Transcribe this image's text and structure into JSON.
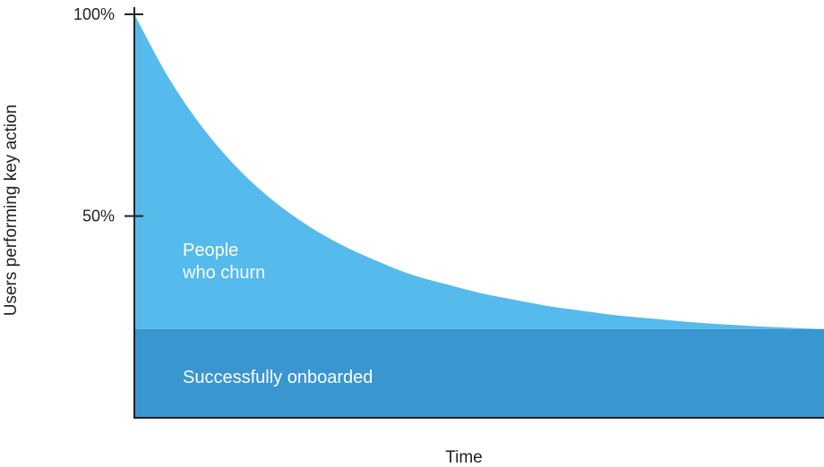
{
  "chart_data": {
    "type": "area",
    "title": "",
    "xlabel": "Time",
    "ylabel": "Users performing key action",
    "ylim": [
      0,
      100
    ],
    "y_ticks": [
      {
        "value": 100,
        "label": "100%"
      },
      {
        "value": 50,
        "label": "50%"
      }
    ],
    "grid": false,
    "legend": "none",
    "series": [
      {
        "name": "Successfully onboarded",
        "color": "#3A96D0",
        "x": [
          0,
          1
        ],
        "y": [
          22,
          22
        ]
      },
      {
        "name": "People who churn",
        "color": "#54BBEC",
        "x": [
          0,
          0.05,
          0.1,
          0.15,
          0.2,
          0.25,
          0.3,
          0.35,
          0.4,
          0.45,
          0.5,
          0.55,
          0.6,
          0.65,
          0.7,
          0.75,
          0.8,
          0.85,
          0.9,
          0.95,
          1
        ],
        "y": [
          100,
          84.2,
          71.7,
          61.8,
          54,
          47.8,
          42.9,
          39,
          35.6,
          33.2,
          31,
          29.3,
          27.7,
          26.5,
          25.4,
          24.6,
          23.8,
          23.2,
          22.7,
          22.3,
          22
        ]
      }
    ],
    "annotations": [
      {
        "lines": [
          "People",
          "who churn"
        ],
        "series": "People who churn"
      },
      {
        "lines": [
          "Successfully onboarded"
        ],
        "series": "Successfully onboarded"
      }
    ]
  }
}
